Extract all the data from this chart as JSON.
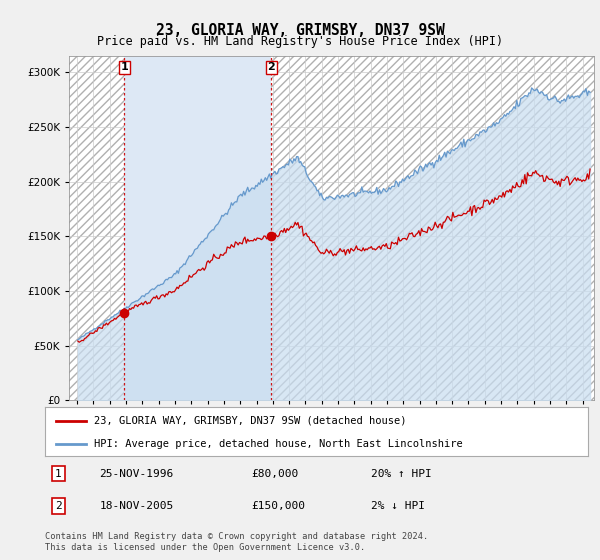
{
  "title": "23, GLORIA WAY, GRIMSBY, DN37 9SW",
  "subtitle": "Price paid vs. HM Land Registry's House Price Index (HPI)",
  "legend_line1": "23, GLORIA WAY, GRIMSBY, DN37 9SW (detached house)",
  "legend_line2": "HPI: Average price, detached house, North East Lincolnshire",
  "footer": "Contains HM Land Registry data © Crown copyright and database right 2024.\nThis data is licensed under the Open Government Licence v3.0.",
  "table": [
    {
      "num": "1",
      "date": "25-NOV-1996",
      "price": "£80,000",
      "hpi": "20% ↑ HPI"
    },
    {
      "num": "2",
      "date": "18-NOV-2005",
      "price": "£150,000",
      "hpi": "2% ↓ HPI"
    }
  ],
  "sale1_x": 1996.9,
  "sale1_y": 80000,
  "sale2_x": 2005.9,
  "sale2_y": 150000,
  "ylim": [
    0,
    315000
  ],
  "xlim": [
    1993.5,
    2025.7
  ],
  "bg_color": "#f0f0f0",
  "plot_bg": "#ffffff",
  "red_color": "#cc0000",
  "blue_color": "#6699cc",
  "marker_color": "#cc0000",
  "light_blue_bg": "#dde8f5",
  "hatch_color": "#cccccc"
}
